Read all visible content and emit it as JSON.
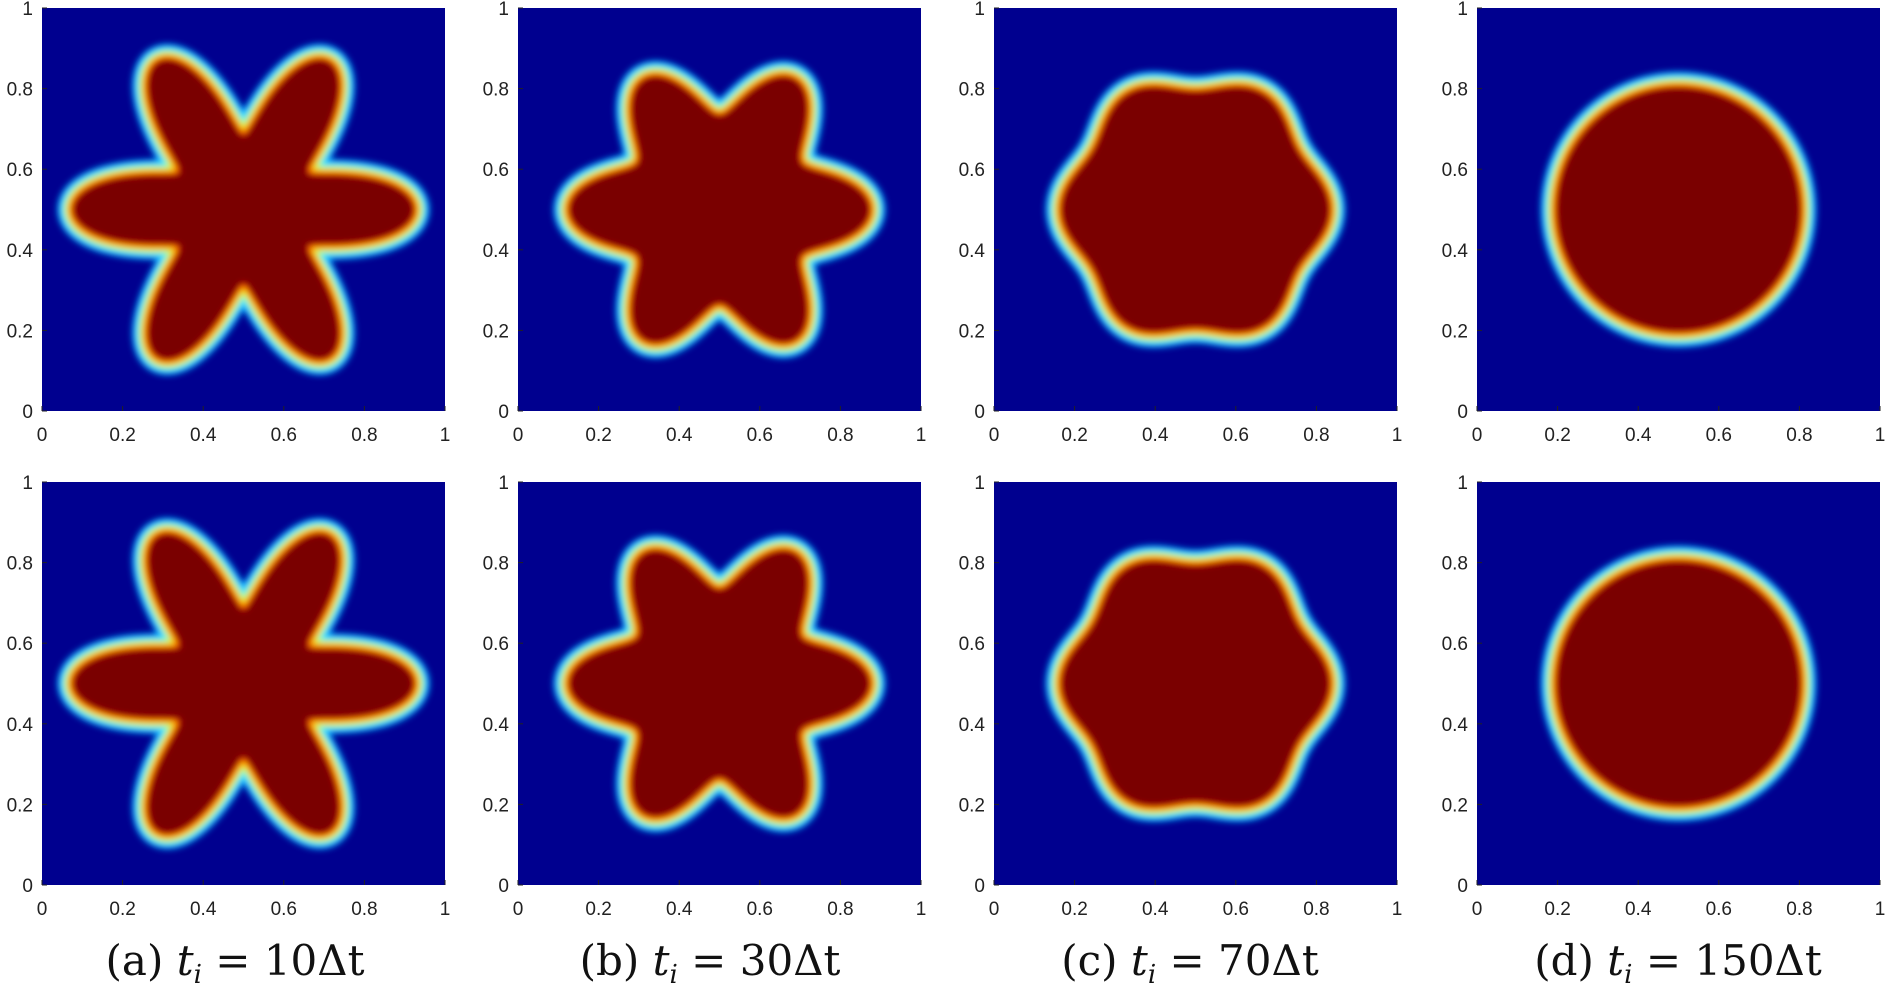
{
  "chart_data": {
    "type": "heatmap",
    "colormap": "jet",
    "background_color": "#00008f",
    "interior_color": "#7a0000",
    "axes": {
      "x_ticks": [
        "0",
        "0.2",
        "0.4",
        "0.6",
        "0.8",
        "1"
      ],
      "y_ticks": [
        "0",
        "0.2",
        "0.4",
        "0.6",
        "0.8",
        "1"
      ],
      "xlim": [
        0,
        1
      ],
      "ylim": [
        0,
        1
      ]
    },
    "rows": 2,
    "columns": [
      {
        "label": "(a)",
        "sub": "i",
        "value": "10",
        "unit": "Δt",
        "shape_radius": 0.3,
        "petals": 6,
        "petal_amplitude": 0.12,
        "iteration": 10
      },
      {
        "label": "(b)",
        "sub": "i",
        "value": "30",
        "unit": "Δt",
        "shape_radius": 0.3,
        "petals": 6,
        "petal_amplitude": 0.07,
        "iteration": 30
      },
      {
        "label": "(c)",
        "sub": "i",
        "value": "70",
        "unit": "Δt",
        "shape_radius": 0.31,
        "petals": 6,
        "petal_amplitude": 0.02,
        "iteration": 70
      },
      {
        "label": "(d)",
        "sub": "i",
        "value": "150",
        "unit": "Δt",
        "shape_radius": 0.3,
        "petals": 6,
        "petal_amplitude": 0.0,
        "iteration": 150
      }
    ],
    "center": [
      0.5,
      0.5
    ]
  }
}
